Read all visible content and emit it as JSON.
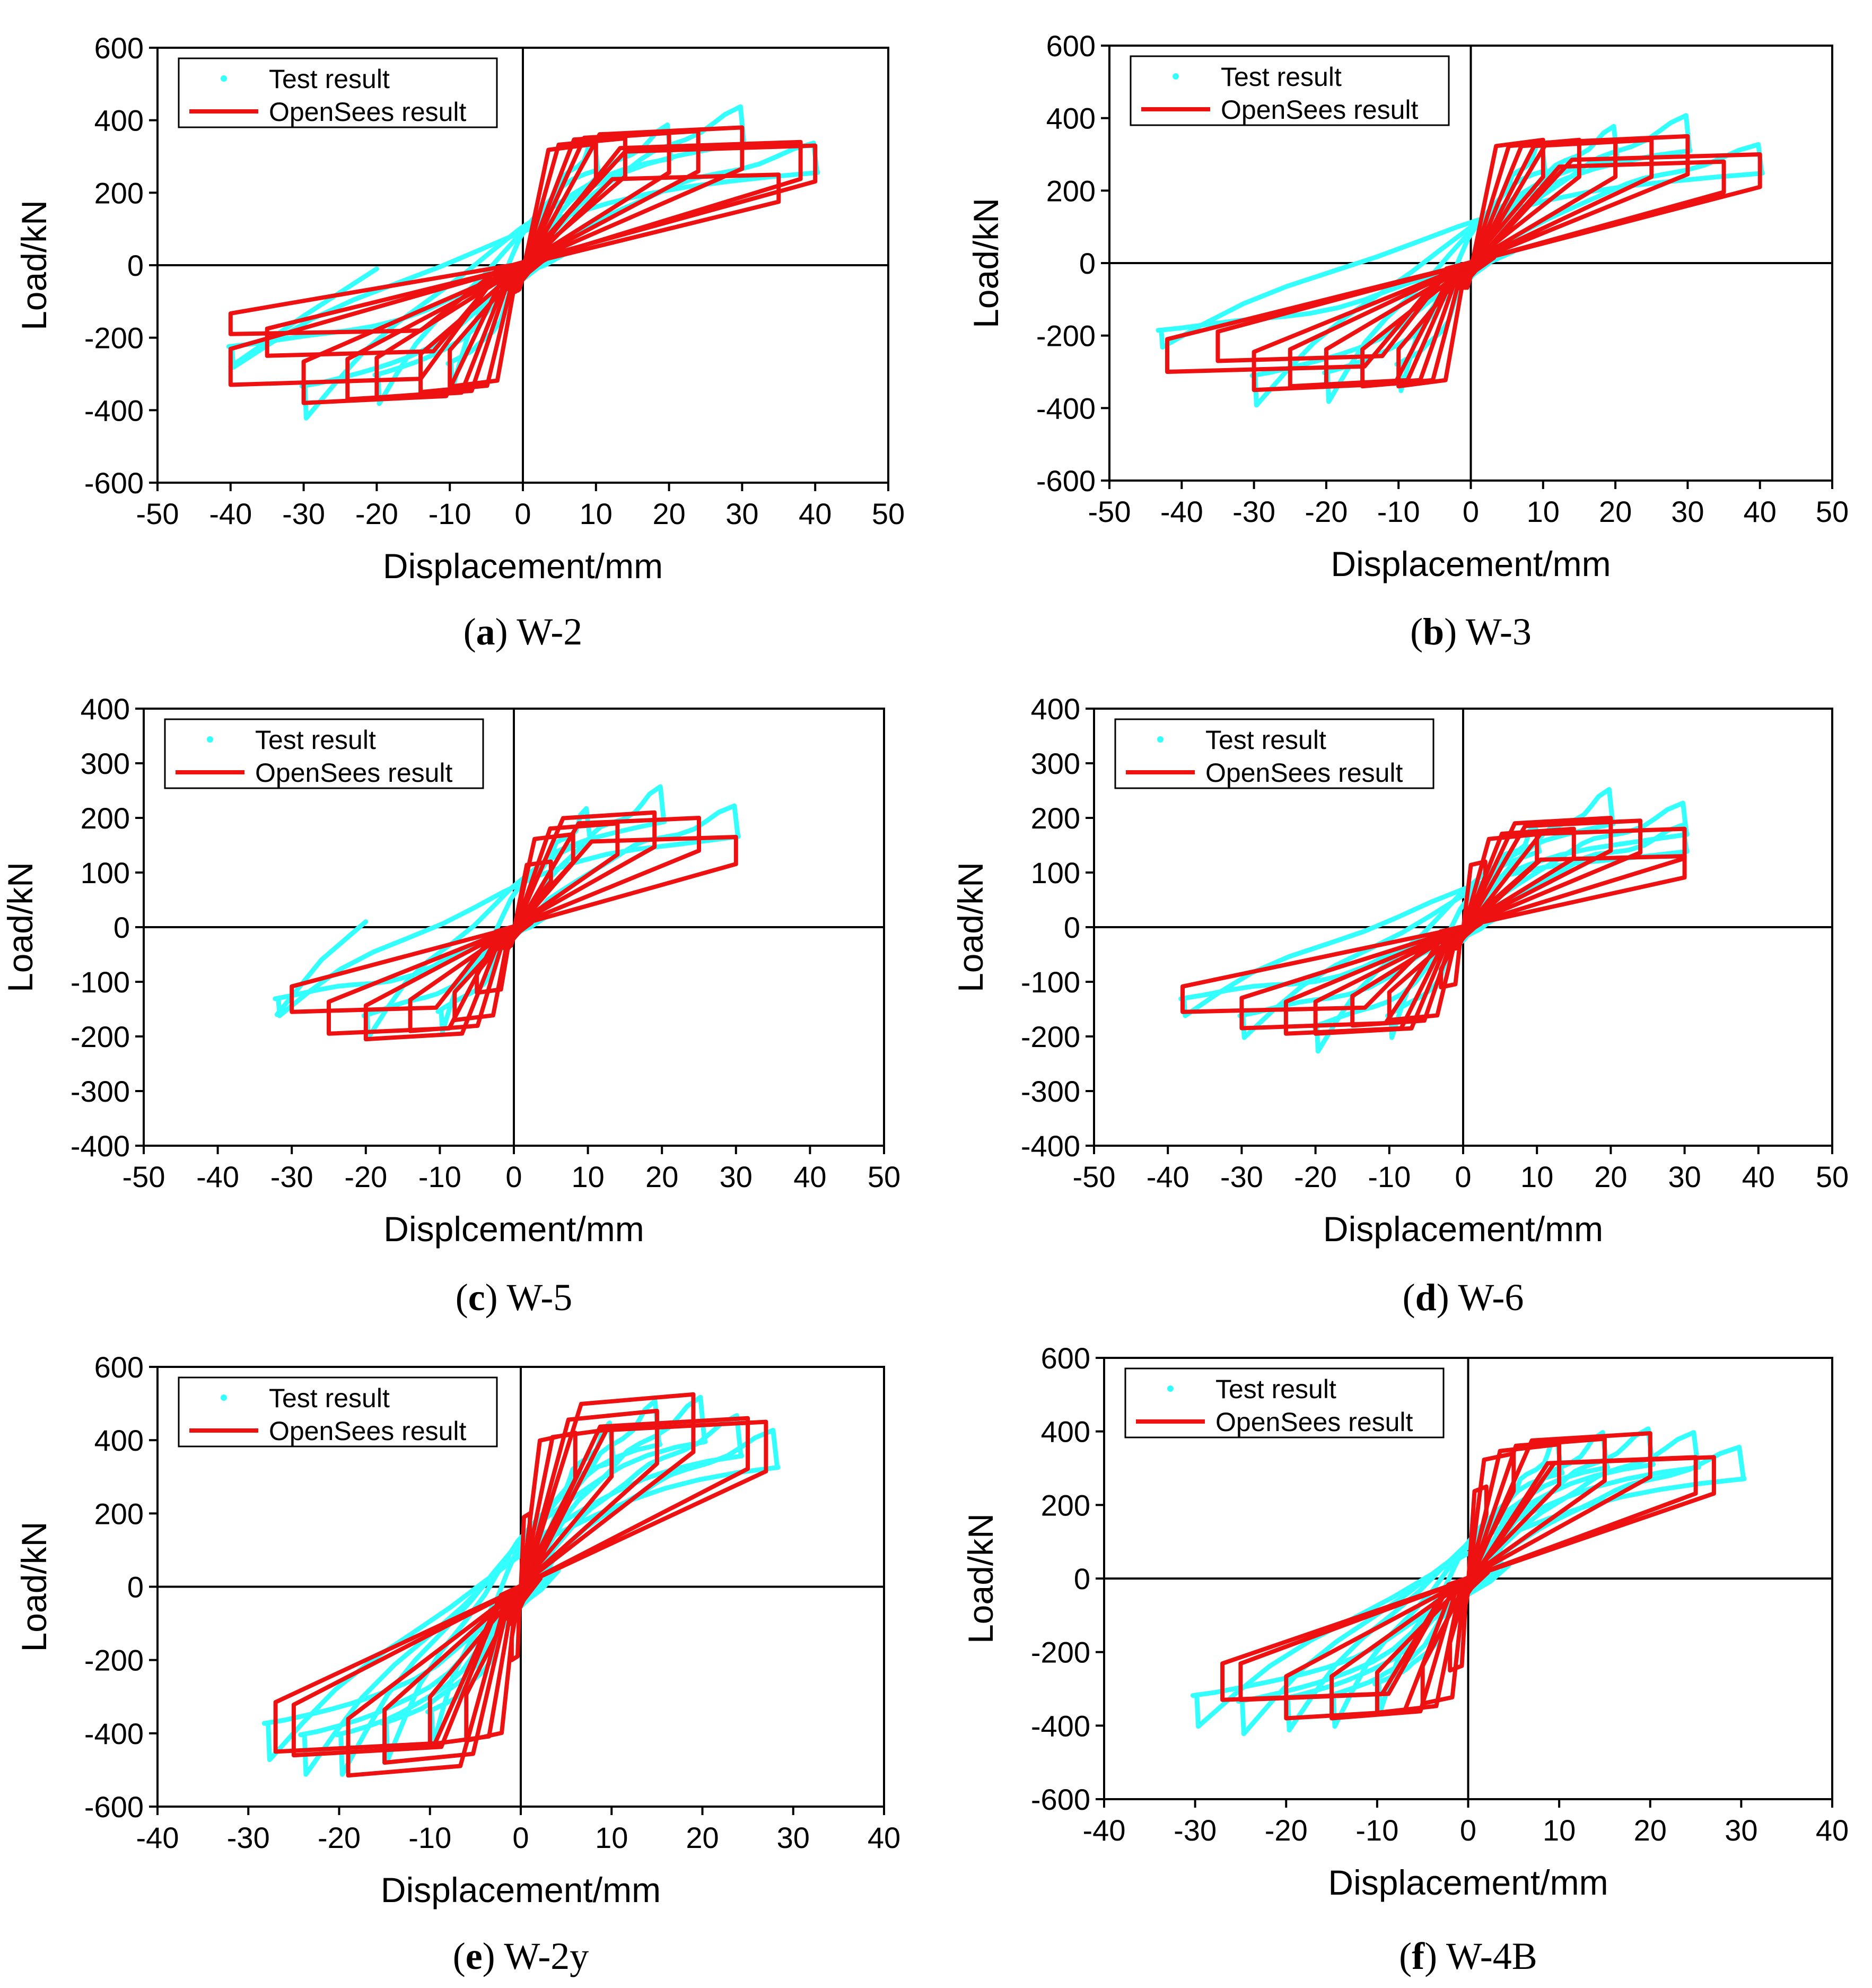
{
  "colors": {
    "test": "#33ffff",
    "opensees": "#ee1111",
    "axis": "#000000"
  },
  "legend": {
    "test_label": "Test result",
    "opensees_label": "OpenSees result"
  },
  "chart_data": [
    {
      "id": "a",
      "type": "scatter",
      "caption_letter": "a",
      "caption_name": " W-2",
      "xlabel": "Displacement/mm",
      "ylabel": "Load/kN",
      "xlim": [
        -50,
        50
      ],
      "ylim": [
        -600,
        600
      ],
      "xticks": [
        -50,
        -40,
        -30,
        -20,
        -10,
        0,
        10,
        20,
        30,
        40,
        50
      ],
      "yticks": [
        -600,
        -400,
        -200,
        0,
        200,
        400,
        600
      ],
      "series": [
        {
          "name": "Test result",
          "role": "test",
          "loops": [
            {
              "peak": [
                10,
                340
              ],
              "neg": [
                -10,
                -340
              ]
            },
            {
              "peak": [
                20,
                380
              ],
              "neg": [
                -20,
                -380
              ]
            },
            {
              "peak": [
                30,
                430
              ],
              "neg": [
                -30,
                -420
              ]
            },
            {
              "peak": [
                40,
                330
              ],
              "neg": [
                -40,
                -280
              ]
            }
          ],
          "tail": [
            [
              -40,
              -280
            ],
            [
              -30,
              -140
            ],
            [
              -20,
              -10
            ]
          ]
        },
        {
          "name": "OpenSees result",
          "role": "opensees",
          "loops": [
            {
              "peak": [
                10,
                335
              ],
              "neg": [
                -10,
                -335
              ]
            },
            {
              "peak": [
                14,
                350
              ],
              "neg": [
                -14,
                -350
              ]
            },
            {
              "peak": [
                20,
                365
              ],
              "neg": [
                -20,
                -365
              ]
            },
            {
              "peak": [
                24,
                370
              ],
              "neg": [
                -24,
                -370
              ]
            },
            {
              "peak": [
                30,
                380
              ],
              "neg": [
                -30,
                -380
              ]
            },
            {
              "peak": [
                35,
                250
              ],
              "neg": [
                -35,
                -250
              ]
            },
            {
              "peak": [
                38,
                340
              ],
              "neg": [
                -40,
                -330
              ]
            },
            {
              "peak": [
                40,
                330
              ],
              "neg": [
                -40,
                -190
              ]
            }
          ]
        }
      ]
    },
    {
      "id": "b",
      "type": "scatter",
      "caption_letter": "b",
      "caption_name": " W-3",
      "xlabel": "Displacement/mm",
      "ylabel": "Load/kN",
      "xlim": [
        -50,
        50
      ],
      "ylim": [
        -600,
        600
      ],
      "xticks": [
        -50,
        -40,
        -30,
        -20,
        -10,
        0,
        10,
        20,
        30,
        40,
        50
      ],
      "yticks": [
        -600,
        -400,
        -200,
        0,
        200,
        400,
        600
      ],
      "series": [
        {
          "name": "Test result",
          "role": "test",
          "loops": [
            {
              "peak": [
                10,
                330
              ],
              "neg": [
                -10,
                -350
              ]
            },
            {
              "peak": [
                20,
                370
              ],
              "neg": [
                -20,
                -380
              ]
            },
            {
              "peak": [
                30,
                400
              ],
              "neg": [
                -30,
                -390
              ]
            },
            {
              "peak": [
                40,
                320
              ],
              "neg": [
                -43,
                -230
              ]
            }
          ]
        },
        {
          "name": "OpenSees result",
          "role": "opensees",
          "loops": [
            {
              "peak": [
                10,
                340
              ],
              "neg": [
                -10,
                -340
              ]
            },
            {
              "peak": [
                15,
                340
              ],
              "neg": [
                -15,
                -340
              ]
            },
            {
              "peak": [
                20,
                340
              ],
              "neg": [
                -20,
                -340
              ]
            },
            {
              "peak": [
                25,
                340
              ],
              "neg": [
                -25,
                -340
              ]
            },
            {
              "peak": [
                30,
                350
              ],
              "neg": [
                -30,
                -350
              ]
            },
            {
              "peak": [
                35,
                280
              ],
              "neg": [
                -35,
                -270
              ]
            },
            {
              "peak": [
                40,
                300
              ],
              "neg": [
                -42,
                -300
              ]
            }
          ]
        }
      ]
    },
    {
      "id": "c",
      "type": "scatter",
      "caption_letter": "c",
      "caption_name": " W-5",
      "xlabel": "Displcement/mm",
      "ylabel": "Load/kN",
      "xlim": [
        -50,
        50
      ],
      "ylim": [
        -400,
        400
      ],
      "xticks": [
        -50,
        -40,
        -30,
        -20,
        -10,
        0,
        10,
        20,
        30,
        40,
        50
      ],
      "yticks": [
        -400,
        -300,
        -200,
        -100,
        0,
        100,
        200,
        300,
        400
      ],
      "series": [
        {
          "name": "Test result",
          "role": "test",
          "loops": [
            {
              "peak": [
                10,
                210
              ],
              "neg": [
                -10,
                -190
              ]
            },
            {
              "peak": [
                20,
                250
              ],
              "neg": [
                -20,
                -200
              ]
            },
            {
              "peak": [
                30,
                215
              ],
              "neg": [
                -32,
                -160
              ]
            }
          ],
          "tail": [
            [
              -32,
              -160
            ],
            [
              -26,
              -60
            ],
            [
              -20,
              10
            ]
          ]
        },
        {
          "name": "OpenSees result",
          "role": "opensees",
          "loops": [
            {
              "peak": [
                5,
                120
              ],
              "neg": [
                -5,
                -120
              ]
            },
            {
              "peak": [
                8,
                170
              ],
              "neg": [
                -8,
                -170
              ]
            },
            {
              "peak": [
                14,
                190
              ],
              "neg": [
                -14,
                -190
              ]
            },
            {
              "peak": [
                19,
                210
              ],
              "neg": [
                -20,
                -205
              ]
            },
            {
              "peak": [
                25,
                200
              ],
              "neg": [
                -25,
                -195
              ]
            },
            {
              "peak": [
                30,
                165
              ],
              "neg": [
                -30,
                -155
              ]
            }
          ]
        }
      ]
    },
    {
      "id": "d",
      "type": "scatter",
      "caption_letter": "d",
      "caption_name": " W-6",
      "xlabel": "Displacement/mm",
      "ylabel": "Load/kN",
      "xlim": [
        -50,
        50
      ],
      "ylim": [
        -400,
        400
      ],
      "xticks": [
        -50,
        -40,
        -30,
        -20,
        -10,
        0,
        10,
        20,
        30,
        40,
        50
      ],
      "yticks": [
        -400,
        -300,
        -200,
        -100,
        0,
        100,
        200,
        300,
        400
      ],
      "series": [
        {
          "name": "Test result",
          "role": "test",
          "loops": [
            {
              "peak": [
                10,
                180
              ],
              "neg": [
                -10,
                -200
              ]
            },
            {
              "peak": [
                20,
                245
              ],
              "neg": [
                -20,
                -225
              ]
            },
            {
              "peak": [
                30,
                220
              ],
              "neg": [
                -30,
                -200
              ]
            },
            {
              "peak": [
                30,
                180
              ],
              "neg": [
                -38,
                -160
              ]
            }
          ]
        },
        {
          "name": "OpenSees result",
          "role": "opensees",
          "loops": [
            {
              "peak": [
                3,
                120
              ],
              "neg": [
                -3,
                -110
              ]
            },
            {
              "peak": [
                10,
                170
              ],
              "neg": [
                -10,
                -170
              ]
            },
            {
              "peak": [
                15,
                180
              ],
              "neg": [
                -15,
                -180
              ]
            },
            {
              "peak": [
                20,
                200
              ],
              "neg": [
                -20,
                -195
              ]
            },
            {
              "peak": [
                24,
                195
              ],
              "neg": [
                -24,
                -195
              ]
            },
            {
              "peak": [
                30,
                180
              ],
              "neg": [
                -30,
                -185
              ]
            },
            {
              "peak": [
                30,
                130
              ],
              "neg": [
                -38,
                -155
              ]
            }
          ]
        }
      ]
    },
    {
      "id": "e",
      "type": "scatter",
      "caption_letter": "e",
      "caption_name": " W-2y",
      "xlabel": "Displacement/mm",
      "ylabel": "Load/kN",
      "xlim": [
        -40,
        40
      ],
      "ylim": [
        -600,
        600
      ],
      "xticks": [
        -40,
        -30,
        -20,
        -10,
        0,
        10,
        20,
        30,
        40
      ],
      "yticks": [
        -600,
        -400,
        -200,
        0,
        200,
        400,
        600
      ],
      "series": [
        {
          "name": "Test result",
          "role": "test",
          "loops": [
            {
              "peak": [
                10,
                440
              ],
              "neg": [
                -10,
                -430
              ]
            },
            {
              "peak": [
                15,
                500
              ],
              "neg": [
                -15,
                -470
              ]
            },
            {
              "peak": [
                20,
                510
              ],
              "neg": [
                -20,
                -510
              ]
            },
            {
              "peak": [
                24,
                460
              ],
              "neg": [
                -24,
                -510
              ]
            },
            {
              "peak": [
                28,
                420
              ],
              "neg": [
                -28,
                -470
              ]
            }
          ]
        },
        {
          "name": "OpenSees result",
          "role": "opensees",
          "loops": [
            {
              "peak": [
                1,
                200
              ],
              "neg": [
                -1,
                -200
              ]
            },
            {
              "peak": [
                6,
                420
              ],
              "neg": [
                -6,
                -420
              ]
            },
            {
              "peak": [
                10,
                430
              ],
              "neg": [
                -10,
                -430
              ]
            },
            {
              "peak": [
                15,
                480
              ],
              "neg": [
                -15,
                -480
              ]
            },
            {
              "peak": [
                19,
                525
              ],
              "neg": [
                -19,
                -515
              ]
            },
            {
              "peak": [
                25,
                460
              ],
              "neg": [
                -25,
                -460
              ]
            },
            {
              "peak": [
                27,
                450
              ],
              "neg": [
                -27,
                -450
              ]
            }
          ]
        }
      ]
    },
    {
      "id": "f",
      "type": "scatter",
      "caption_letter": "f",
      "caption_name": " W-4B",
      "xlabel": "Displacement/mm",
      "ylabel": "Load/kN",
      "xlim": [
        -40,
        40
      ],
      "ylim": [
        -600,
        600
      ],
      "xticks": [
        -40,
        -30,
        -20,
        -10,
        0,
        10,
        20,
        30,
        40
      ],
      "yticks": [
        -600,
        -400,
        -200,
        0,
        200,
        400,
        600
      ],
      "series": [
        {
          "name": "Test result",
          "role": "test",
          "loops": [
            {
              "peak": [
                10,
                370
              ],
              "neg": [
                -10,
                -360
              ]
            },
            {
              "peak": [
                15,
                390
              ],
              "neg": [
                -15,
                -400
              ]
            },
            {
              "peak": [
                20,
                400
              ],
              "neg": [
                -20,
                -410
              ]
            },
            {
              "peak": [
                25,
                390
              ],
              "neg": [
                -25,
                -420
              ]
            },
            {
              "peak": [
                30,
                350
              ],
              "neg": [
                -30,
                -400
              ]
            }
          ]
        },
        {
          "name": "OpenSees result",
          "role": "opensees",
          "loops": [
            {
              "peak": [
                2,
                250
              ],
              "neg": [
                -2,
                -250
              ]
            },
            {
              "peak": [
                5,
                340
              ],
              "neg": [
                -5,
                -340
              ]
            },
            {
              "peak": [
                10,
                365
              ],
              "neg": [
                -10,
                -365
              ]
            },
            {
              "peak": [
                15,
                380
              ],
              "neg": [
                -15,
                -380
              ]
            },
            {
              "peak": [
                20,
                395
              ],
              "neg": [
                -20,
                -380
              ]
            },
            {
              "peak": [
                25,
                330
              ],
              "neg": [
                -25,
                -330
              ]
            },
            {
              "peak": [
                27,
                330
              ],
              "neg": [
                -27,
                -330
              ]
            }
          ]
        }
      ]
    }
  ]
}
